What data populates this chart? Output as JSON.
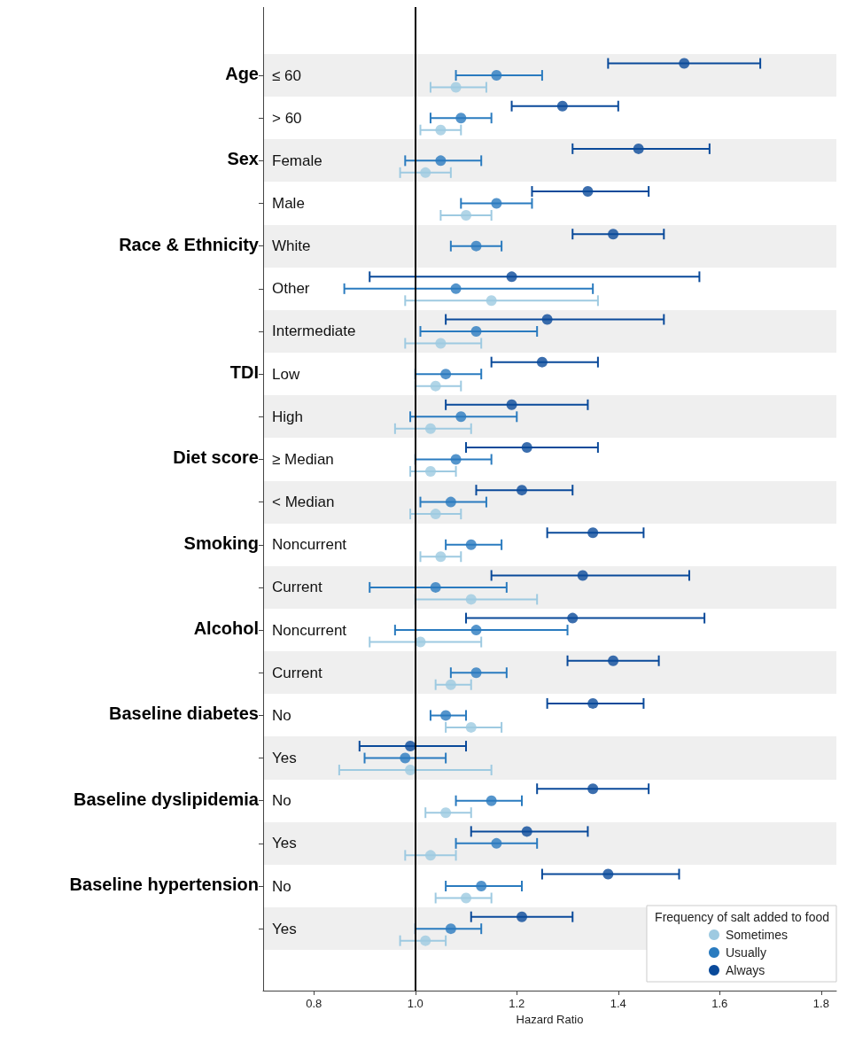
{
  "chart_data": {
    "type": "scatter",
    "orientation": "horizontal",
    "xlabel": "Hazard Ratio",
    "legend_title": "Frequency of salt added to food",
    "legend": "bottom right",
    "marker": "circle",
    "grid": false,
    "categories": [
      "≤ 60",
      "> 60",
      "Female",
      "Male",
      "White",
      "Other",
      "Intermediate",
      "Low",
      "High",
      "≥ Median",
      "< Median",
      "Noncurrent",
      "Current",
      "Noncurrent",
      "Current",
      "No",
      "Yes",
      "No",
      "Yes",
      "No",
      "Yes"
    ],
    "xlim": [
      0.7,
      1.83
    ],
    "xticks": [
      {
        "value": 0.8,
        "label": "0.8"
      },
      {
        "value": 1,
        "label": "1.0"
      },
      {
        "value": 1.2,
        "label": "1.2"
      },
      {
        "value": 1.4,
        "label": "1.4"
      },
      {
        "value": 1.6,
        "label": "1.6"
      },
      {
        "value": 1.8,
        "label": "1.8"
      }
    ],
    "series": [
      {
        "name": "Sometimes",
        "color": "#9ecae1",
        "values": [
          1.08,
          1.05,
          1.02,
          1.1,
          null,
          1.15,
          1.05,
          1.04,
          1.03,
          1.03,
          1.04,
          1.05,
          1.11,
          1.01,
          1.07,
          1.11,
          0.99,
          1.06,
          1.03,
          1.1,
          1.02
        ],
        "errors": [
          [
            1.03,
            1.14
          ],
          [
            1.01,
            1.09
          ],
          [
            0.97,
            1.07
          ],
          [
            1.05,
            1.15
          ],
          null,
          [
            0.98,
            1.36
          ],
          [
            0.98,
            1.13
          ],
          [
            1.0,
            1.09
          ],
          [
            0.96,
            1.11
          ],
          [
            0.99,
            1.08
          ],
          [
            0.99,
            1.09
          ],
          [
            1.01,
            1.09
          ],
          [
            1.0,
            1.24
          ],
          [
            0.91,
            1.13
          ],
          [
            1.04,
            1.11
          ],
          [
            1.06,
            1.17
          ],
          [
            0.85,
            1.15
          ],
          [
            1.02,
            1.11
          ],
          [
            0.98,
            1.08
          ],
          [
            1.04,
            1.15
          ],
          [
            0.97,
            1.06
          ]
        ]
      },
      {
        "name": "Usually",
        "color": "#2a7bbf",
        "values": [
          1.16,
          1.09,
          1.05,
          1.16,
          1.12,
          1.08,
          1.12,
          1.06,
          1.09,
          1.08,
          1.07,
          1.11,
          1.04,
          1.12,
          1.12,
          1.06,
          0.98,
          1.15,
          1.16,
          1.13,
          1.07
        ],
        "errors": [
          [
            1.08,
            1.25
          ],
          [
            1.03,
            1.15
          ],
          [
            0.98,
            1.13
          ],
          [
            1.09,
            1.23
          ],
          [
            1.07,
            1.17
          ],
          [
            0.86,
            1.35
          ],
          [
            1.01,
            1.24
          ],
          [
            1.0,
            1.13
          ],
          [
            0.99,
            1.2
          ],
          [
            1.0,
            1.15
          ],
          [
            1.01,
            1.14
          ],
          [
            1.06,
            1.17
          ],
          [
            0.91,
            1.18
          ],
          [
            0.96,
            1.3
          ],
          [
            1.07,
            1.18
          ],
          [
            1.03,
            1.1
          ],
          [
            0.9,
            1.06
          ],
          [
            1.08,
            1.21
          ],
          [
            1.08,
            1.24
          ],
          [
            1.06,
            1.21
          ],
          [
            1.0,
            1.13
          ]
        ]
      },
      {
        "name": "Always",
        "color": "#0a4a9a",
        "values": [
          1.53,
          1.29,
          1.44,
          1.34,
          1.39,
          1.19,
          1.26,
          1.25,
          1.19,
          1.22,
          1.21,
          1.35,
          1.33,
          1.31,
          1.39,
          1.35,
          0.99,
          1.35,
          1.22,
          1.38,
          1.21
        ],
        "errors": [
          [
            1.38,
            1.68
          ],
          [
            1.19,
            1.4
          ],
          [
            1.31,
            1.58
          ],
          [
            1.23,
            1.46
          ],
          [
            1.31,
            1.49
          ],
          [
            0.91,
            1.56
          ],
          [
            1.06,
            1.49
          ],
          [
            1.15,
            1.36
          ],
          [
            1.06,
            1.34
          ],
          [
            1.1,
            1.36
          ],
          [
            1.12,
            1.31
          ],
          [
            1.26,
            1.45
          ],
          [
            1.15,
            1.54
          ],
          [
            1.1,
            1.57
          ],
          [
            1.3,
            1.48
          ],
          [
            1.26,
            1.45
          ],
          [
            0.89,
            1.1
          ],
          [
            1.24,
            1.46
          ],
          [
            1.11,
            1.34
          ],
          [
            1.25,
            1.52
          ],
          [
            1.11,
            1.31
          ]
        ]
      }
    ],
    "ref_lines": [
      {
        "axis": "x",
        "value": 1,
        "color": "#000000"
      }
    ],
    "annotations": [
      "Age",
      "Sex",
      "Race & Ethnicity",
      "TDI",
      "Diet score",
      "Smoking",
      "Alcohol",
      "Baseline diabetes",
      "Baseline dyslipidemia",
      "Baseline hypertension"
    ]
  }
}
